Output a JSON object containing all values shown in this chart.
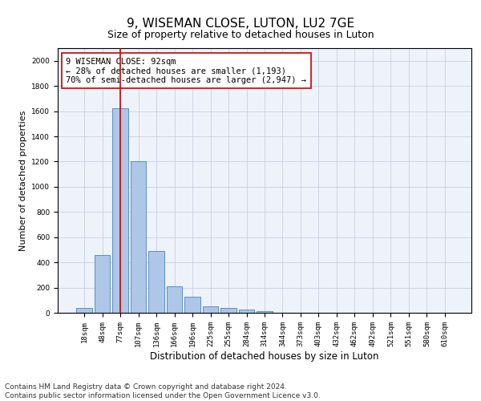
{
  "title": "9, WISEMAN CLOSE, LUTON, LU2 7GE",
  "subtitle": "Size of property relative to detached houses in Luton",
  "xlabel": "Distribution of detached houses by size in Luton",
  "ylabel": "Number of detached properties",
  "categories": [
    "18sqm",
    "48sqm",
    "77sqm",
    "107sqm",
    "136sqm",
    "166sqm",
    "196sqm",
    "225sqm",
    "255sqm",
    "284sqm",
    "314sqm",
    "344sqm",
    "373sqm",
    "403sqm",
    "432sqm",
    "462sqm",
    "492sqm",
    "521sqm",
    "551sqm",
    "580sqm",
    "610sqm"
  ],
  "values": [
    38,
    460,
    1620,
    1200,
    490,
    210,
    130,
    50,
    40,
    25,
    15,
    0,
    0,
    0,
    0,
    0,
    0,
    0,
    0,
    0,
    0
  ],
  "bar_color": "#aec6e8",
  "bar_edge_color": "#5a8fc2",
  "vline_index": 2,
  "vline_color": "#cc0000",
  "annotation_text": "9 WISEMAN CLOSE: 92sqm\n← 28% of detached houses are smaller (1,193)\n70% of semi-detached houses are larger (2,947) →",
  "annotation_box_color": "#ffffff",
  "annotation_border_color": "#cc0000",
  "ylim": [
    0,
    2100
  ],
  "yticks": [
    0,
    200,
    400,
    600,
    800,
    1000,
    1200,
    1400,
    1600,
    1800,
    2000
  ],
  "grid_color": "#c8d0e0",
  "background_color": "#eef2fa",
  "footnote": "Contains HM Land Registry data © Crown copyright and database right 2024.\nContains public sector information licensed under the Open Government Licence v3.0.",
  "title_fontsize": 11,
  "subtitle_fontsize": 9,
  "xlabel_fontsize": 8.5,
  "ylabel_fontsize": 8,
  "tick_fontsize": 6.5,
  "annotation_fontsize": 7.5,
  "footnote_fontsize": 6.5
}
